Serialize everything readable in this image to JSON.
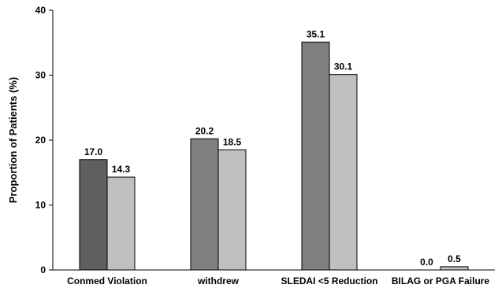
{
  "chart_data": {
    "type": "bar",
    "title": "",
    "xlabel": "",
    "ylabel": "Proportion of Patients (%)",
    "ylim": [
      0,
      40
    ],
    "yticks": [
      "0",
      "10",
      "20",
      "30",
      "40"
    ],
    "grid": false,
    "legend": "none",
    "categories": [
      "Conmed Violation",
      "withdrew",
      "SLEDAI <5 Reduction",
      "BILAG or PGA Failure"
    ],
    "series": [
      {
        "values": [
          17.0,
          20.2,
          35.1,
          0.0
        ],
        "labels": [
          "17.0",
          "20.2",
          "35.1",
          "0.0"
        ],
        "colors": [
          "#5f5f5f",
          "#7f7f7f",
          "#7f7f7f",
          "#7f7f7f"
        ]
      },
      {
        "values": [
          14.3,
          18.5,
          30.1,
          0.5
        ],
        "labels": [
          "14.3",
          "18.5",
          "30.1",
          "0.5"
        ],
        "colors": [
          "#bfbfbf",
          "#bfbfbf",
          "#bfbfbf",
          "#bfbfbf"
        ]
      }
    ]
  }
}
